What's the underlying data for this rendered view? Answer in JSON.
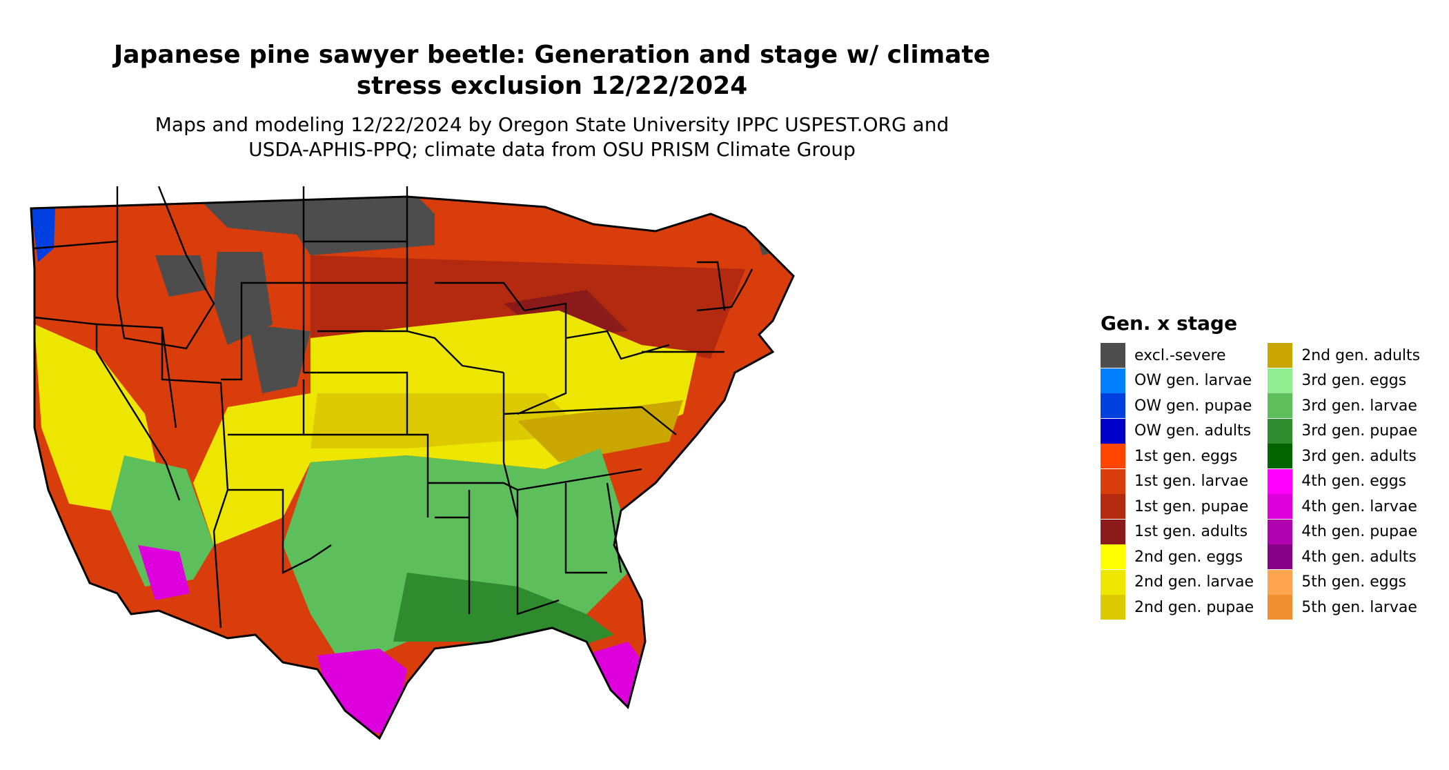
{
  "map": {
    "title_line1": "Japanese pine sawyer beetle: Generation and stage w/ climate",
    "title_line2": "stress exclusion 12/22/2024",
    "subtitle_line1": "Maps and modeling 12/22/2024 by Oregon State University IPPC USPEST.ORG and",
    "subtitle_line2": "USDA-APHIS-PPQ; climate data from OSU PRISM Climate Group",
    "region": "Contiguous United States"
  },
  "legend": {
    "title": "Gen. x stage",
    "column1": [
      {
        "label": "excl.-severe",
        "color": "#4d4d4d"
      },
      {
        "label": "OW gen. larvae",
        "color": "#0080ff"
      },
      {
        "label": "OW gen. pupae",
        "color": "#0040e0"
      },
      {
        "label": "OW gen. adults",
        "color": "#0000cc"
      },
      {
        "label": "1st gen. eggs",
        "color": "#ff4500"
      },
      {
        "label": "1st gen. larvae",
        "color": "#d93d0c"
      },
      {
        "label": "1st gen. pupae",
        "color": "#b32a10"
      },
      {
        "label": "1st gen. adults",
        "color": "#8b1a1a"
      },
      {
        "label": "2nd gen. eggs",
        "color": "#ffff00"
      },
      {
        "label": "2nd gen. larvae",
        "color": "#ede600"
      },
      {
        "label": "2nd gen. pupae",
        "color": "#dcc900"
      }
    ],
    "column2": [
      {
        "label": "2nd gen. adults",
        "color": "#c9a600"
      },
      {
        "label": "3rd gen. eggs",
        "color": "#90ee90"
      },
      {
        "label": "3rd gen. larvae",
        "color": "#5cbf5c"
      },
      {
        "label": "3rd gen. pupae",
        "color": "#2e8b2e"
      },
      {
        "label": "3rd gen. adults",
        "color": "#006400"
      },
      {
        "label": "4th gen. eggs",
        "color": "#ff00ff"
      },
      {
        "label": "4th gen. larvae",
        "color": "#dd00dd"
      },
      {
        "label": "4th gen. pupae",
        "color": "#b000b0"
      },
      {
        "label": "4th gen. adults",
        "color": "#880088"
      },
      {
        "label": "5th gen. eggs",
        "color": "#ffa550"
      },
      {
        "label": "5th gen. larvae",
        "color": "#f09030"
      }
    ]
  }
}
